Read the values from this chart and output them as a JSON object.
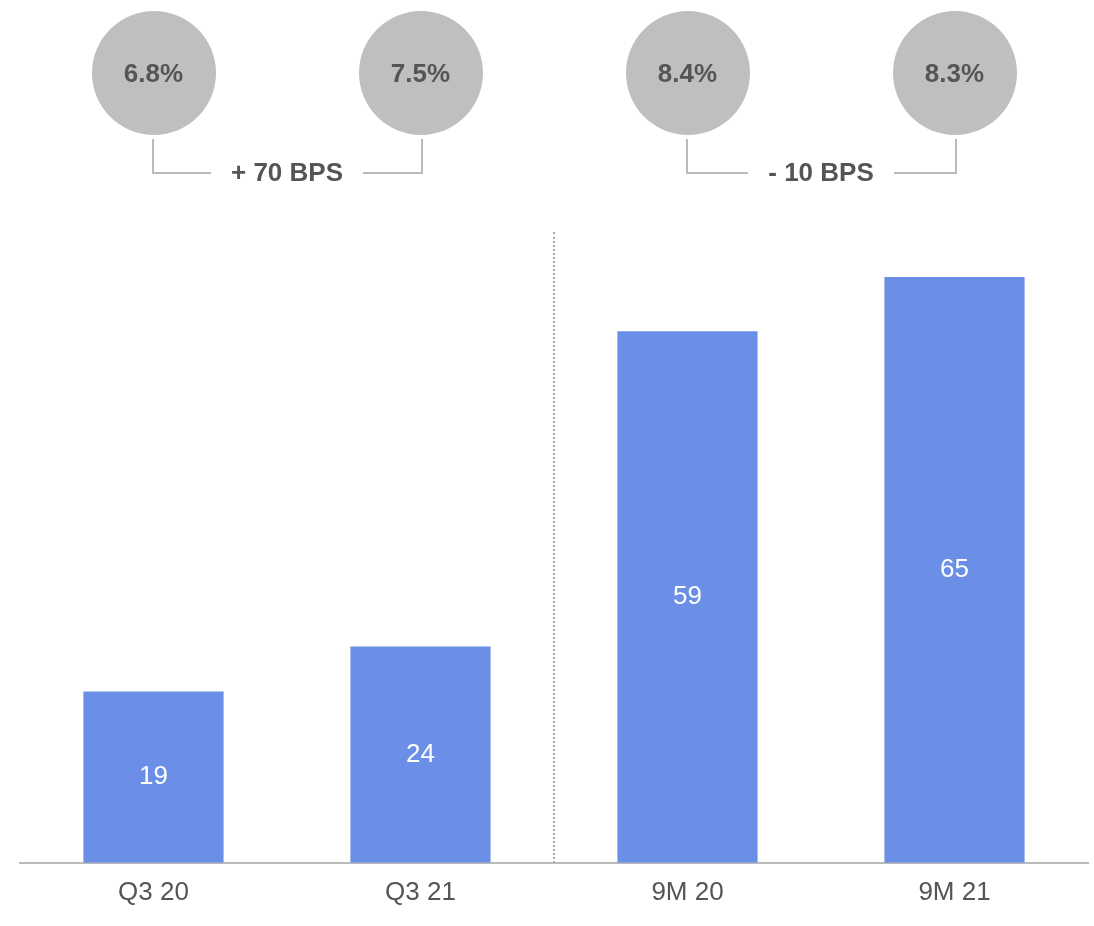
{
  "chart_data": {
    "type": "bar",
    "categories": [
      "Q3 20",
      "Q3 21",
      "9M 20",
      "9M 21"
    ],
    "values": [
      19,
      24,
      59,
      65
    ],
    "color": "#6b8ee6",
    "data_labels": true,
    "grid": false,
    "legend": false,
    "tick_labels": "x",
    "annotations": [
      "6.8%",
      "7.5%",
      "8.4%",
      "8.3%",
      "+ 70 BPS",
      "- 10 BPS"
    ]
  }
}
